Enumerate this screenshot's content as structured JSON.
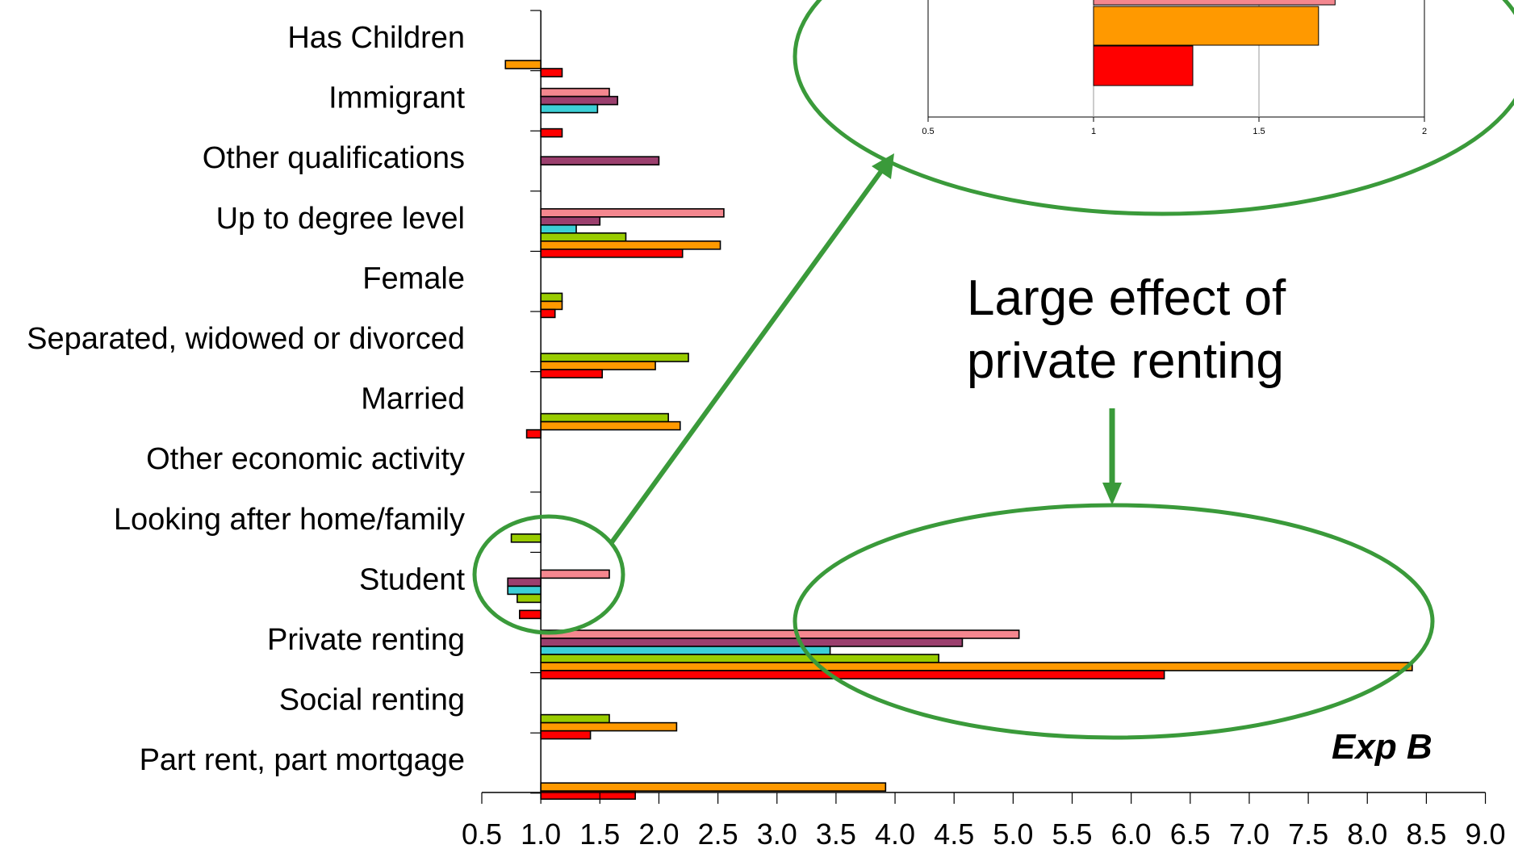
{
  "chart_data": [
    {
      "type": "bar",
      "orientation": "horizontal",
      "xlabel": "Exp B",
      "xlim": [
        0.5,
        9.0
      ],
      "x_ticks": [
        "0.5",
        "1.0",
        "1.5",
        "2.0",
        "2.5",
        "3.0",
        "3.5",
        "4.0",
        "4.5",
        "5.0",
        "5.5",
        "6.0",
        "6.5",
        "7.0",
        "7.5",
        "8.0",
        "8.5",
        "9.0"
      ],
      "baseline": 1.0,
      "series_colors": [
        "#f4878f",
        "#9b3f6e",
        "#3ccfd6",
        "#99cc00",
        "#ff9900",
        "#ff0000"
      ],
      "categories": [
        "Has Children",
        "Immigrant",
        "Other qualifications",
        "Up to degree level",
        "Female",
        "Separated, widowed or divorced",
        "Married",
        "Other economic activity",
        "Looking after home/family",
        "Student",
        "Private renting",
        "Social renting",
        "Part rent, part mortgage"
      ],
      "values": [
        [
          null,
          null,
          null,
          null,
          0.7,
          1.18
        ],
        [
          1.58,
          1.65,
          1.48,
          null,
          null,
          1.18
        ],
        [
          null,
          2.0,
          null,
          null,
          null,
          null
        ],
        [
          2.55,
          1.5,
          1.3,
          1.72,
          2.52,
          2.2
        ],
        [
          null,
          null,
          null,
          1.18,
          1.18,
          1.12
        ],
        [
          null,
          null,
          null,
          2.25,
          1.97,
          1.52
        ],
        [
          null,
          null,
          null,
          2.08,
          2.18,
          0.88
        ],
        [
          null,
          null,
          null,
          null,
          null,
          null
        ],
        [
          null,
          null,
          null,
          0.75,
          null,
          null
        ],
        [
          1.58,
          0.72,
          0.72,
          0.8,
          null,
          0.82
        ],
        [
          5.05,
          4.57,
          3.45,
          4.37,
          8.38,
          6.28
        ],
        [
          null,
          null,
          null,
          1.58,
          null,
          1.42
        ],
        [
          null,
          null,
          null,
          null,
          3.92,
          1.8
        ]
      ],
      "extra_values": {
        "Has Children": [],
        "Social renting": [
          2.15
        ]
      }
    },
    {
      "type": "bar",
      "orientation": "horizontal",
      "role": "zoomed inset",
      "xlim": [
        0.5,
        2
      ],
      "x_ticks": [
        "0.5",
        "1",
        "1.5",
        "2"
      ],
      "baseline": 1,
      "series_colors": [
        "#f4878f",
        "#ff9900",
        "#ff0000"
      ],
      "values": [
        1.73,
        1.68,
        1.3
      ]
    }
  ],
  "annotations": {
    "callout_line1": "Large effect of",
    "callout_line2": "private renting",
    "axis_label": "Exp B",
    "highlight_color": "#3a9a3a"
  }
}
